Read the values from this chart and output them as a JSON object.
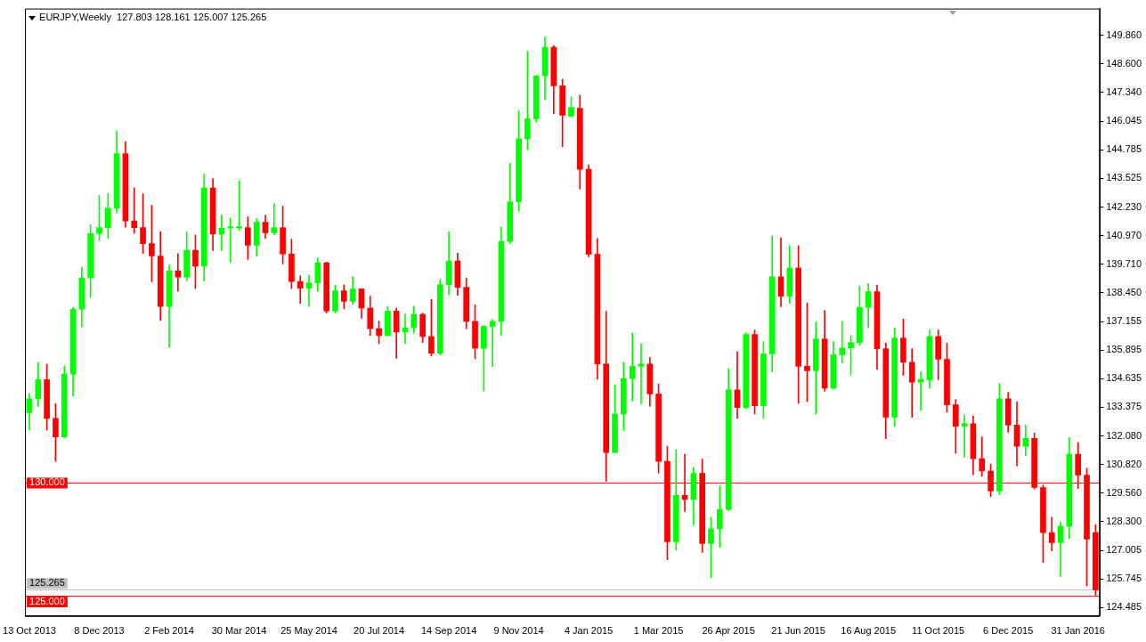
{
  "chart_data": {
    "type": "candlestick",
    "title": "EURJPY,Weekly  127.803 128.161 125.007 125.265",
    "categories": [
      "13 Oct 2013",
      null,
      null,
      null,
      null,
      null,
      null,
      null,
      "8 Dec 2013",
      null,
      null,
      null,
      null,
      null,
      null,
      null,
      "2 Feb 2014",
      null,
      null,
      null,
      null,
      null,
      null,
      null,
      "30 Mar 2014",
      null,
      null,
      null,
      null,
      null,
      null,
      null,
      "25 May 2014",
      null,
      null,
      null,
      null,
      null,
      null,
      null,
      "20 Jul 2014",
      null,
      null,
      null,
      null,
      null,
      null,
      null,
      "14 Sep 2014",
      null,
      null,
      null,
      null,
      null,
      null,
      null,
      "9 Nov 2014",
      null,
      null,
      null,
      null,
      null,
      null,
      null,
      "4 Jan 2015",
      null,
      null,
      null,
      null,
      null,
      null,
      null,
      "1 Mar 2015",
      null,
      null,
      null,
      null,
      null,
      null,
      null,
      "26 Apr 2015",
      null,
      null,
      null,
      null,
      null,
      null,
      null,
      "21 Jun 2015",
      null,
      null,
      null,
      null,
      null,
      null,
      null,
      "16 Aug 2015",
      null,
      null,
      null,
      null,
      null,
      null,
      null,
      "11 Oct 2015",
      null,
      null,
      null,
      null,
      null,
      null,
      null,
      "6 Dec 2015",
      null,
      null,
      null,
      null,
      null,
      null,
      null,
      "31 Jan 2016",
      null,
      null
    ],
    "ohlc": [
      [
        133.12,
        133.97,
        132.35,
        133.74
      ],
      [
        133.74,
        135.36,
        133.39,
        134.59
      ],
      [
        134.59,
        135.27,
        132.35,
        132.87
      ],
      [
        132.87,
        133.52,
        130.96,
        132.05
      ],
      [
        132.05,
        135.18,
        132.0,
        134.83
      ],
      [
        134.83,
        137.8,
        133.86,
        137.71
      ],
      [
        137.71,
        139.58,
        136.92,
        139.1
      ],
      [
        139.1,
        141.46,
        138.25,
        141.07
      ],
      [
        141.07,
        142.76,
        140.76,
        141.33
      ],
      [
        141.33,
        142.83,
        140.85,
        142.19
      ],
      [
        142.19,
        145.63,
        141.98,
        144.61
      ],
      [
        144.61,
        145.14,
        141.35,
        141.63
      ],
      [
        141.63,
        143.1,
        141.08,
        141.33
      ],
      [
        141.33,
        142.83,
        140.18,
        140.62
      ],
      [
        140.62,
        142.32,
        138.93,
        140.07
      ],
      [
        140.07,
        141.15,
        137.21,
        137.83
      ],
      [
        137.83,
        139.68,
        136.02,
        139.42
      ],
      [
        139.42,
        140.18,
        138.51,
        139.14
      ],
      [
        139.14,
        141.15,
        138.97,
        140.33
      ],
      [
        140.33,
        141.01,
        138.62,
        139.62
      ],
      [
        139.62,
        143.71,
        138.97,
        143.09
      ],
      [
        143.09,
        143.51,
        140.31,
        141.05
      ],
      [
        141.05,
        141.89,
        140.31,
        141.3
      ],
      [
        141.31,
        141.76,
        139.79,
        141.31
      ],
      [
        141.31,
        143.41,
        141.2,
        141.31
      ],
      [
        141.33,
        141.81,
        139.92,
        140.55
      ],
      [
        140.55,
        141.74,
        140.07,
        141.57
      ],
      [
        141.57,
        141.89,
        140.85,
        141.1
      ],
      [
        141.1,
        142.4,
        141.01,
        141.33
      ],
      [
        141.33,
        142.28,
        139.72,
        140.16
      ],
      [
        140.16,
        140.82,
        138.62,
        138.94
      ],
      [
        138.94,
        139.19,
        137.97,
        138.64
      ],
      [
        138.64,
        139.23,
        137.83,
        138.88
      ],
      [
        138.88,
        139.98,
        138.51,
        139.77
      ],
      [
        139.77,
        139.8,
        137.54,
        137.63
      ],
      [
        137.63,
        138.77,
        137.54,
        138.53
      ],
      [
        138.53,
        138.79,
        137.73,
        138.06
      ],
      [
        138.06,
        139.16,
        137.93,
        138.61
      ],
      [
        138.61,
        138.61,
        137.31,
        137.76
      ],
      [
        137.76,
        138.29,
        136.54,
        136.85
      ],
      [
        136.85,
        137.18,
        136.18,
        136.54
      ],
      [
        136.54,
        137.84,
        136.54,
        137.63
      ],
      [
        137.63,
        137.76,
        135.53,
        136.7
      ],
      [
        136.7,
        137.5,
        136.18,
        136.89
      ],
      [
        136.89,
        137.84,
        136.66,
        137.48
      ],
      [
        137.48,
        137.54,
        136.23,
        136.5
      ],
      [
        136.5,
        138.15,
        135.63,
        135.76
      ],
      [
        135.76,
        139.03,
        135.68,
        138.8
      ],
      [
        138.8,
        141.15,
        138.35,
        139.85
      ],
      [
        139.85,
        140.2,
        138.33,
        138.68
      ],
      [
        138.68,
        139.1,
        136.84,
        137.17
      ],
      [
        137.17,
        137.91,
        135.51,
        135.98
      ],
      [
        135.98,
        136.99,
        134.08,
        136.95
      ],
      [
        136.95,
        137.26,
        135.17,
        137.17
      ],
      [
        137.17,
        141.36,
        136.55,
        140.72
      ],
      [
        140.72,
        144.19,
        140.62,
        142.47
      ],
      [
        142.47,
        146.53,
        142.07,
        145.27
      ],
      [
        145.27,
        149.15,
        144.78,
        146.16
      ],
      [
        146.16,
        148.09,
        146.0,
        148.06
      ],
      [
        148.06,
        149.78,
        147.0,
        149.33
      ],
      [
        149.33,
        149.41,
        146.39,
        147.62
      ],
      [
        147.62,
        147.91,
        144.91,
        146.32
      ],
      [
        146.28,
        147.14,
        146.24,
        146.66
      ],
      [
        146.63,
        147.21,
        143.04,
        143.92
      ],
      [
        143.92,
        144.11,
        140.04,
        140.15
      ],
      [
        140.15,
        140.85,
        134.6,
        135.28
      ],
      [
        135.28,
        137.62,
        130.07,
        131.35
      ],
      [
        131.35,
        134.36,
        131.35,
        133.06
      ],
      [
        133.06,
        135.35,
        132.33,
        134.63
      ],
      [
        134.63,
        136.66,
        133.63,
        135.18
      ],
      [
        135.18,
        136.19,
        133.51,
        135.28
      ],
      [
        135.28,
        135.57,
        133.4,
        133.95
      ],
      [
        133.95,
        134.4,
        130.44,
        130.96
      ],
      [
        130.96,
        131.63,
        126.59,
        127.39
      ],
      [
        127.39,
        131.48,
        127.02,
        129.45
      ],
      [
        129.45,
        131.28,
        128.74,
        129.27
      ],
      [
        129.27,
        130.7,
        128.13,
        130.43
      ],
      [
        130.43,
        131.06,
        126.92,
        127.31
      ],
      [
        127.31,
        128.48,
        125.79,
        127.97
      ],
      [
        127.97,
        129.86,
        127.15,
        128.83
      ],
      [
        128.83,
        135.08,
        128.78,
        134.13
      ],
      [
        134.13,
        135.83,
        132.87,
        133.35
      ],
      [
        133.35,
        136.67,
        133.3,
        136.59
      ],
      [
        136.59,
        136.79,
        133.06,
        133.43
      ],
      [
        133.43,
        136.28,
        132.87,
        135.73
      ],
      [
        135.73,
        140.96,
        134.93,
        139.15
      ],
      [
        139.15,
        140.88,
        137.82,
        138.29
      ],
      [
        138.29,
        140.53,
        137.97,
        139.54
      ],
      [
        139.54,
        140.53,
        133.53,
        135.18
      ],
      [
        135.18,
        137.99,
        133.61,
        134.98
      ],
      [
        134.98,
        137.14,
        133.06,
        136.39
      ],
      [
        136.39,
        137.65,
        134.08,
        134.21
      ],
      [
        134.21,
        136.28,
        134.16,
        135.69
      ],
      [
        135.69,
        137.18,
        135.32,
        135.99
      ],
      [
        135.99,
        136.52,
        134.78,
        136.23
      ],
      [
        136.23,
        138.75,
        136.1,
        137.79
      ],
      [
        137.79,
        138.85,
        136.88,
        138.49
      ],
      [
        138.49,
        138.77,
        135.05,
        135.96
      ],
      [
        135.96,
        136.21,
        131.97,
        132.92
      ],
      [
        132.92,
        136.89,
        132.52,
        136.43
      ],
      [
        136.43,
        137.28,
        134.78,
        135.36
      ],
      [
        135.36,
        135.96,
        132.91,
        134.48
      ],
      [
        134.48,
        134.92,
        133.22,
        134.6
      ],
      [
        134.56,
        136.79,
        134.19,
        136.5
      ],
      [
        136.5,
        136.79,
        134.58,
        135.49
      ],
      [
        135.49,
        136.21,
        133.14,
        133.47
      ],
      [
        133.47,
        133.7,
        131.31,
        132.52
      ],
      [
        132.52,
        133.02,
        131.15,
        132.63
      ],
      [
        132.63,
        132.97,
        130.37,
        131.08
      ],
      [
        131.08,
        132.05,
        130.3,
        130.53
      ],
      [
        130.53,
        130.83,
        129.4,
        129.65
      ],
      [
        129.65,
        134.41,
        129.48,
        133.74
      ],
      [
        133.74,
        134.02,
        132.25,
        132.57
      ],
      [
        132.57,
        133.6,
        130.76,
        131.63
      ],
      [
        131.63,
        132.57,
        131.23,
        131.98
      ],
      [
        131.98,
        132.22,
        129.73,
        129.8
      ],
      [
        129.8,
        129.92,
        126.48,
        127.8
      ],
      [
        127.8,
        128.48,
        126.99,
        127.35
      ],
      [
        127.35,
        128.28,
        125.86,
        128.09
      ],
      [
        128.09,
        132.02,
        127.53,
        131.28
      ],
      [
        131.28,
        131.79,
        129.75,
        130.35
      ],
      [
        130.35,
        130.66,
        125.44,
        127.51
      ],
      [
        127.803,
        128.161,
        125.007,
        125.265
      ]
    ],
    "colors": [
      "#00ff00",
      "#00ff00",
      "#ff0000",
      "#ff0000",
      "#00ff00",
      "#00ff00",
      "#00ff00",
      "#00ff00",
      "#00ff00",
      "#00ff00",
      "#00ff00",
      "#ff0000",
      "#ff0000",
      "#ff0000",
      "#ff0000",
      "#ff0000",
      "#00ff00",
      "#ff0000",
      "#00ff00",
      "#ff0000",
      "#00ff00",
      "#ff0000",
      "#00ff00",
      "#00ff00",
      "#00ff00",
      "#ff0000",
      "#00ff00",
      "#ff0000",
      "#00ff00",
      "#ff0000",
      "#ff0000",
      "#ff0000",
      "#00ff00",
      "#00ff00",
      "#ff0000",
      "#00ff00",
      "#ff0000",
      "#00ff00",
      "#ff0000",
      "#ff0000",
      "#ff0000",
      "#00ff00",
      "#ff0000",
      "#00ff00",
      "#00ff00",
      "#ff0000",
      "#ff0000",
      "#00ff00",
      "#00ff00",
      "#ff0000",
      "#ff0000",
      "#ff0000",
      "#00ff00",
      "#00ff00",
      "#00ff00",
      "#00ff00",
      "#00ff00",
      "#00ff00",
      "#00ff00",
      "#00ff00",
      "#ff0000",
      "#ff0000",
      "#00ff00",
      "#ff0000",
      "#ff0000",
      "#ff0000",
      "#ff0000",
      "#00ff00",
      "#00ff00",
      "#00ff00",
      "#00ff00",
      "#ff0000",
      "#ff0000",
      "#ff0000",
      "#00ff00",
      "#ff0000",
      "#00ff00",
      "#ff0000",
      "#00ff00",
      "#00ff00",
      "#00ff00",
      "#ff0000",
      "#00ff00",
      "#ff0000",
      "#00ff00",
      "#00ff00",
      "#ff0000",
      "#00ff00",
      "#ff0000",
      "#ff0000",
      "#00ff00",
      "#ff0000",
      "#00ff00",
      "#00ff00",
      "#00ff00",
      "#00ff00",
      "#00ff00",
      "#ff0000",
      "#ff0000",
      "#00ff00",
      "#ff0000",
      "#ff0000",
      "#00ff00",
      "#00ff00",
      "#ff0000",
      "#ff0000",
      "#ff0000",
      "#00ff00",
      "#ff0000",
      "#ff0000",
      "#ff0000",
      "#00ff00",
      "#ff0000",
      "#ff0000",
      "#00ff00",
      "#ff0000",
      "#ff0000",
      "#ff0000",
      "#00ff00",
      "#00ff00",
      "#ff0000",
      "#ff0000",
      "#ff0000"
    ],
    "ylim": [
      124.1,
      151.05
    ],
    "yticks": [
      {
        "value": 149.86,
        "label": "149.860"
      },
      {
        "value": 148.6,
        "label": "148.600"
      },
      {
        "value": 147.34,
        "label": "147.340"
      },
      {
        "value": 146.045,
        "label": "146.045"
      },
      {
        "value": 144.785,
        "label": "144.785"
      },
      {
        "value": 143.525,
        "label": "143.525"
      },
      {
        "value": 142.23,
        "label": "142.230"
      },
      {
        "value": 140.97,
        "label": "140.970"
      },
      {
        "value": 139.71,
        "label": "139.710"
      },
      {
        "value": 138.45,
        "label": "138.450"
      },
      {
        "value": 137.155,
        "label": "137.155"
      },
      {
        "value": 135.895,
        "label": "135.895"
      },
      {
        "value": 134.635,
        "label": "134.635"
      },
      {
        "value": 133.375,
        "label": "133.375"
      },
      {
        "value": 132.08,
        "label": "132.080"
      },
      {
        "value": 130.82,
        "label": "130.820"
      },
      {
        "value": 129.56,
        "label": "129.560"
      },
      {
        "value": 128.3,
        "label": "128.300"
      },
      {
        "value": 127.005,
        "label": "127.005"
      },
      {
        "value": 125.745,
        "label": "125.745"
      },
      {
        "value": 124.485,
        "label": "124.485"
      }
    ],
    "ref_lines": [
      {
        "axis": "y",
        "value": 130,
        "label": "130.000",
        "color": "#ff0000"
      },
      {
        "axis": "y",
        "value": 125.265,
        "label": "125.265",
        "color": "#c0c0c0"
      },
      {
        "axis": "y",
        "value": 125,
        "label": "125.000",
        "color": "#ff0000"
      }
    ],
    "grid": false,
    "legend": false
  }
}
